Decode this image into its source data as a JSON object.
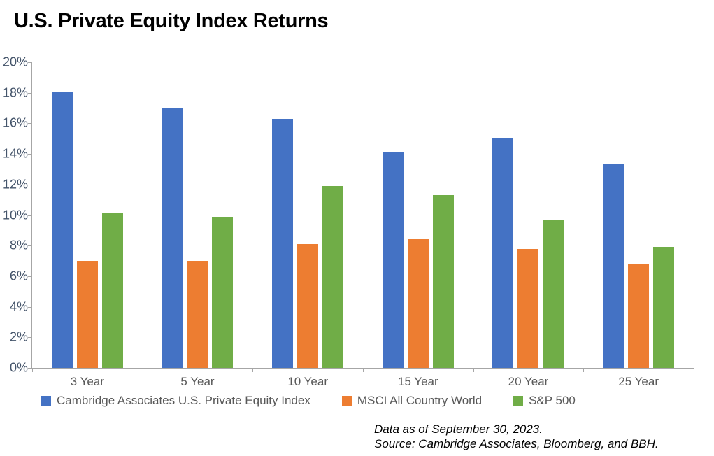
{
  "title": "U.S. Private Equity Index Returns",
  "footer": {
    "line1": "Data as of September 30, 2023.",
    "line2": "Source: Cambridge Associates, Bloomberg, and BBH."
  },
  "chart_data": {
    "type": "bar",
    "title": "U.S. Private Equity Index Returns",
    "categories": [
      "3 Year",
      "5 Year",
      "10 Year",
      "15 Year",
      "20 Year",
      "25 Year"
    ],
    "series": [
      {
        "name": "Cambridge Associates U.S. Private Equity Index",
        "color": "#4472C4",
        "values": [
          18.1,
          17.0,
          16.3,
          14.1,
          15.0,
          13.3
        ]
      },
      {
        "name": "MSCI All Country World",
        "color": "#ED7D31",
        "values": [
          7.0,
          7.0,
          8.1,
          8.4,
          7.8,
          6.8
        ]
      },
      {
        "name": "S&P 500",
        "color": "#70AD47",
        "values": [
          10.1,
          9.9,
          11.9,
          11.3,
          9.7,
          7.9
        ]
      }
    ],
    "ylim": [
      0,
      20
    ],
    "ytick_step": 2,
    "ytick_suffix": "%",
    "grid": false,
    "legend_position": "bottom",
    "axis_color": "#A6A6A6",
    "ytick_label_color": "#44546A",
    "category_label_color": "#595959"
  }
}
